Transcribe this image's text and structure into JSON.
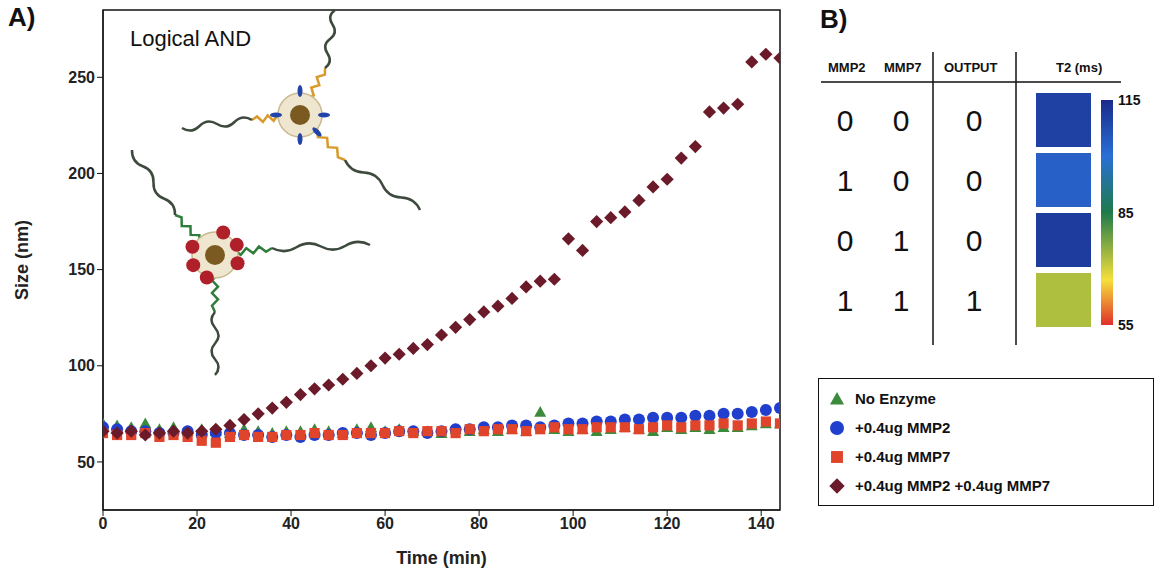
{
  "chart_data": {
    "type": "scatter",
    "panel_label": "A)",
    "annotations": [
      "Logical AND"
    ],
    "x_label": "Time (min)",
    "y_label": "Size (nm)",
    "x": [
      0,
      3,
      6,
      9,
      12,
      15,
      18,
      21,
      24,
      27,
      30,
      33,
      36,
      39,
      42,
      45,
      48,
      51,
      54,
      57,
      60,
      63,
      66,
      69,
      72,
      75,
      78,
      81,
      84,
      87,
      90,
      93,
      96,
      99,
      102,
      105,
      108,
      111,
      114,
      117,
      120,
      123,
      126,
      129,
      132,
      135,
      138,
      141,
      144
    ],
    "series": [
      {
        "name": "No Enzyme",
        "color": "#3c8a3c",
        "marker": "triangle",
        "values": [
          70,
          69,
          68,
          70,
          67,
          68,
          66,
          67,
          66,
          65,
          67,
          66,
          65,
          66,
          66,
          67,
          66,
          65,
          67,
          68,
          66,
          67,
          66,
          66,
          65,
          67,
          66,
          67,
          66,
          67,
          66,
          76,
          67,
          66,
          67,
          66,
          67,
          68,
          67,
          66,
          68,
          67,
          68,
          67,
          68,
          68,
          69,
          70,
          70
        ]
      },
      {
        "name": "+0.4ug MMP2",
        "color": "#1f3fcc",
        "marker": "circle",
        "values": [
          68,
          67,
          66,
          66,
          65,
          65,
          66,
          64,
          65,
          65,
          64,
          64,
          63,
          64,
          63,
          64,
          64,
          65,
          65,
          64,
          65,
          66,
          66,
          65,
          66,
          67,
          67,
          68,
          68,
          69,
          69,
          68,
          69,
          70,
          70,
          71,
          71,
          72,
          72,
          73,
          73,
          73,
          74,
          74,
          75,
          75,
          76,
          77,
          78
        ]
      },
      {
        "name": "+0.4ug MMP7",
        "color": "#e0452b",
        "marker": "square",
        "values": [
          65,
          64,
          64,
          65,
          63,
          64,
          63,
          61,
          60,
          63,
          64,
          63,
          63,
          64,
          64,
          65,
          64,
          64,
          65,
          65,
          65,
          66,
          65,
          66,
          66,
          65,
          67,
          66,
          67,
          67,
          66,
          67,
          68,
          67,
          67,
          68,
          68,
          68,
          67,
          68,
          69,
          68,
          69,
          69,
          70,
          69,
          70,
          71,
          70
        ]
      },
      {
        "name": "+0.4ug MMP2 +0.4ug MMP7",
        "color": "#6b1a2a",
        "marker": "diamond",
        "values": [
          66,
          65,
          66,
          64,
          65,
          66,
          65,
          66,
          67,
          69,
          72,
          75,
          78,
          81,
          85,
          88,
          90,
          93,
          96,
          100,
          104,
          106,
          109,
          111,
          116,
          120,
          124,
          128,
          131,
          135,
          141,
          144,
          145,
          166,
          160,
          175,
          177,
          180,
          186,
          193,
          197,
          208,
          214,
          232,
          234,
          236,
          258,
          262,
          260
        ]
      }
    ],
    "xlim": [
      0,
      144
    ],
    "xticks": [
      0,
      20,
      40,
      60,
      80,
      100,
      120,
      140
    ],
    "ylim": [
      25,
      285
    ],
    "yticks": [
      50,
      100,
      150,
      200,
      250
    ],
    "grid": false,
    "legend": "right"
  },
  "truth_table": {
    "panel_label": "B)",
    "header": [
      "MMP2",
      "MMP7",
      "OUTPUT",
      "T2 (ms)"
    ],
    "rows": [
      [
        0,
        0,
        0
      ],
      [
        1,
        0,
        0
      ],
      [
        0,
        1,
        0
      ],
      [
        1,
        1,
        1
      ]
    ],
    "t2_ms": [
      110,
      103,
      111,
      73
    ],
    "colorbar": {
      "range": [
        55,
        115
      ],
      "ticks": [
        115,
        85,
        55
      ]
    }
  }
}
